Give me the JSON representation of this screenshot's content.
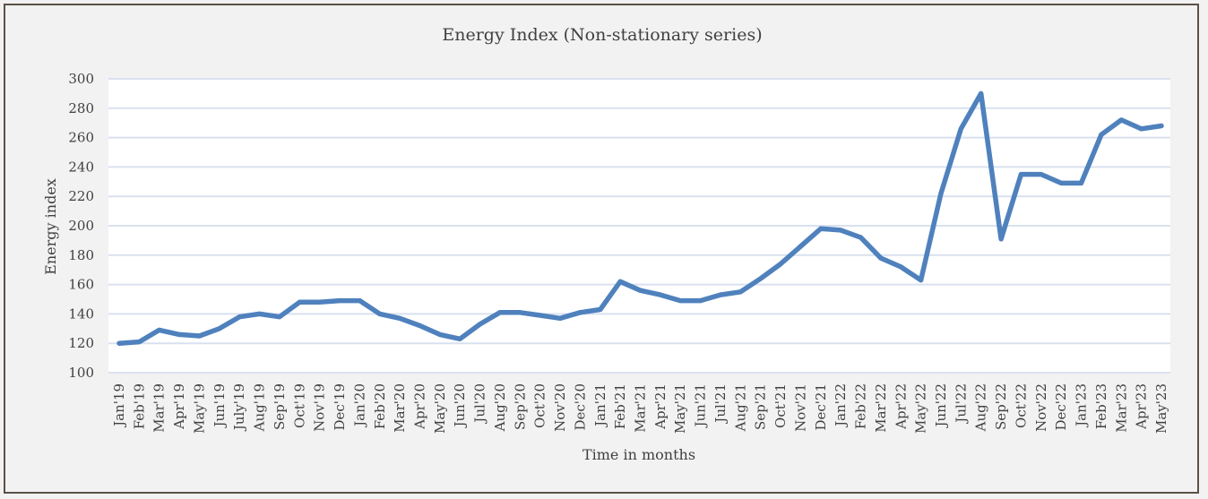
{
  "chart_data": {
    "type": "line",
    "title": "Energy Index (Non-stationary series)",
    "xlabel": "Time in months",
    "ylabel": "Energy index",
    "ylim": [
      100,
      300
    ],
    "yticks": [
      "100",
      "120",
      "140",
      "160",
      "180",
      "200",
      "220",
      "240",
      "260",
      "280",
      "300"
    ],
    "grid": true,
    "categories": [
      "Jan'19",
      "Feb'19",
      "Mar'19",
      "Apr'19",
      "May'19",
      "Jun'19",
      "July'19",
      "Aug'19",
      "Sep'19",
      "Oct'19",
      "Nov'19",
      "Dec'19",
      "Jan'20",
      "Feb'20",
      "Mar'20",
      "Apr'20",
      "May'20",
      "Jun'20",
      "Jul'20",
      "Aug'20",
      "Sep'20",
      "Oct'20",
      "Nov'20",
      "Dec'20",
      "Jan'21",
      "Feb'21",
      "Mar'21",
      "Apr'21",
      "May'21",
      "Jun'21",
      "Jul'21",
      "Aug'21",
      "Sep'21",
      "Oct'21",
      "Nov'21",
      "Dec'21",
      "Jan'22",
      "Feb'22",
      "Mar'22",
      "Apr'22",
      "May'22",
      "Jun'22",
      "Jul'22",
      "Aug'22",
      "Sep'22",
      "Oct'22",
      "Nov'22",
      "Dec'22",
      "Jan'23",
      "Feb'23",
      "Mar'23",
      "Apr'23",
      "May'23"
    ],
    "series": [
      {
        "values": [
          120,
          121,
          129,
          126,
          125,
          130,
          138,
          140,
          138,
          148,
          148,
          149,
          149,
          140,
          137,
          132,
          126,
          123,
          133,
          141,
          141,
          139,
          137,
          141,
          143,
          162,
          156,
          153,
          149,
          149,
          153,
          155,
          164,
          174,
          186,
          198,
          197,
          192,
          178,
          172,
          163,
          222,
          266,
          290,
          191,
          235,
          235,
          229,
          229,
          262,
          272,
          266,
          268
        ]
      }
    ],
    "colors": {
      "line": "#4f81bd",
      "grid": "#d9e1f0",
      "plot_bg": "#ffffff",
      "outer_bg": "#f2f2f2"
    }
  }
}
